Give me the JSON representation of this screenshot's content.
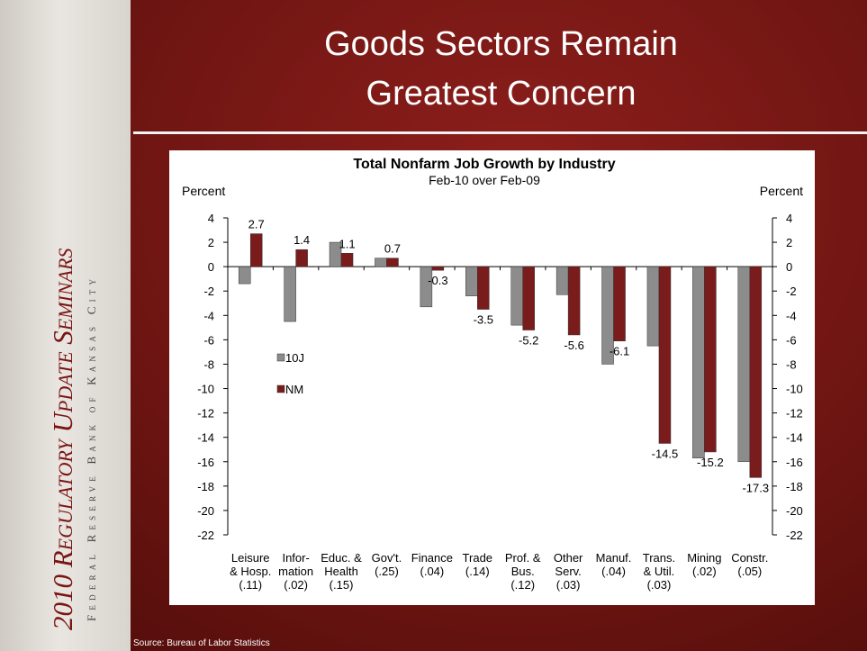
{
  "sidebar": {
    "title": "2010 Regulatory Update Seminars",
    "subtitle": "Federal Reserve Bank of Kansas City"
  },
  "slide": {
    "title": [
      "Goods Sectors Remain",
      "Greatest Concern"
    ],
    "source": "Source: Bureau of Labor Statistics"
  },
  "chart_data": {
    "type": "bar",
    "title": "Total Nonfarm Job Growth by Industry",
    "subtitle": "Feb-10 over Feb-09",
    "ylabel": "Percent",
    "y2label": "Percent",
    "categories": [
      [
        "Leisure",
        "& Hosp.",
        "(.11)"
      ],
      [
        "Infor-",
        "mation",
        "(.02)"
      ],
      [
        "Educ. &",
        "Health",
        "(.15)"
      ],
      [
        "Gov't.",
        "(.25)"
      ],
      [
        "Finance",
        "(.04)"
      ],
      [
        "Trade",
        "(.14)"
      ],
      [
        "Prof. &",
        "Bus.",
        "(.12)"
      ],
      [
        "Other",
        "Serv.",
        "(.03)"
      ],
      [
        "Manuf.",
        "(.04)"
      ],
      [
        "Trans.",
        "& Util.",
        "(.03)"
      ],
      [
        "Mining",
        "(.02)"
      ],
      [
        "Constr.",
        "(.05)"
      ]
    ],
    "series": [
      {
        "name": "10J",
        "color": "#8c8c8c",
        "show_labels": false,
        "values": [
          -1.4,
          -4.5,
          2.0,
          0.7,
          -3.3,
          -2.4,
          -4.8,
          -2.3,
          -8.0,
          -6.5,
          -15.7,
          -16.0
        ]
      },
      {
        "name": "NM",
        "color": "#7a1c1c",
        "show_labels": true,
        "values": [
          2.7,
          1.4,
          1.1,
          0.7,
          -0.3,
          -3.5,
          -5.2,
          -5.6,
          -6.1,
          -14.5,
          -15.2,
          -17.3
        ]
      }
    ],
    "ylim": [
      -22,
      4
    ],
    "yticks": [
      -22,
      -20,
      -18,
      -16,
      -14,
      -12,
      -10,
      -8,
      -6,
      -4,
      -2,
      0,
      2,
      4
    ],
    "y2lim": [
      -22,
      4
    ],
    "y2ticks": [
      -22,
      -20,
      -18,
      -16,
      -14,
      -12,
      -10,
      -8,
      -6,
      -4,
      -2,
      0,
      2,
      4
    ],
    "legend": "inside-left",
    "grid": false
  }
}
